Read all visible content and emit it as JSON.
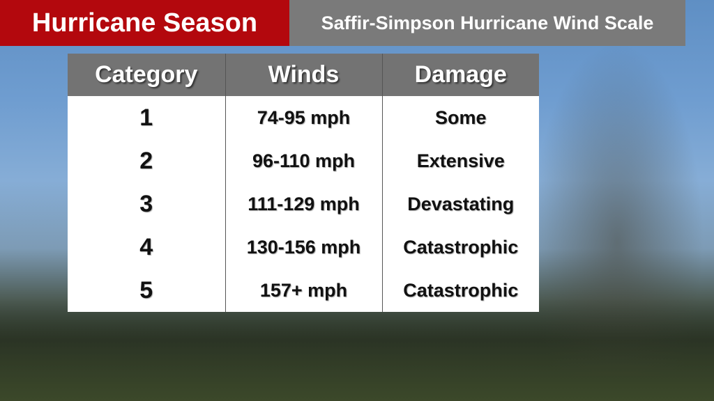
{
  "header": {
    "title": "Hurricane Season",
    "subtitle": "Saffir-Simpson Hurricane Wind Scale"
  },
  "table": {
    "columns": [
      "Category",
      "Winds",
      "Damage"
    ],
    "rows": [
      [
        "1",
        "74-95 mph",
        "Some"
      ],
      [
        "2",
        "96-110 mph",
        "Extensive"
      ],
      [
        "3",
        "111-129 mph",
        "Devastating"
      ],
      [
        "4",
        "130-156 mph",
        "Catastrophic"
      ],
      [
        "5",
        "157+ mph",
        "Catastrophic"
      ]
    ]
  }
}
